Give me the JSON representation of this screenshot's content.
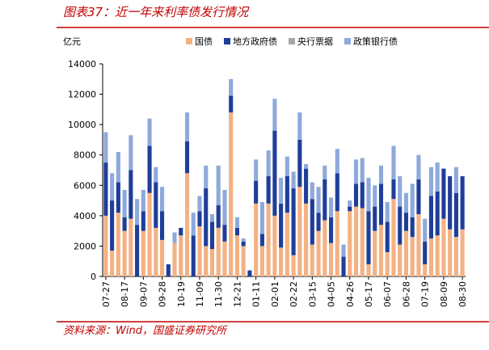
{
  "chart_data": {
    "type": "stacked_bar",
    "title": "图表37：近一年来利率债发行情况",
    "y_label": "亿元",
    "source": "资料来源：Wind，国盛证券研究所",
    "categories": [
      "07-27",
      null,
      null,
      "08-17",
      null,
      null,
      "09-07",
      null,
      null,
      "09-28",
      null,
      null,
      "10-19",
      null,
      null,
      "11-09",
      null,
      null,
      "11-30",
      null,
      null,
      "12-21",
      null,
      null,
      "01-11",
      null,
      null,
      "02-01",
      null,
      null,
      "02-22",
      null,
      null,
      "03-15",
      null,
      null,
      "04-05",
      null,
      null,
      "04-26",
      null,
      null,
      "05-17",
      null,
      null,
      "06-07",
      null,
      null,
      "06-28",
      null,
      null,
      "07-19",
      null,
      null,
      "08-09",
      null,
      null,
      "08-30"
    ],
    "series": [
      {
        "name": "国债",
        "color": "#f4b183",
        "values": [
          4000,
          1700,
          4200,
          3000,
          3800,
          0,
          3000,
          5500,
          3200,
          2400,
          0,
          2200,
          2700,
          6800,
          0,
          3300,
          2000,
          1800,
          3200,
          2300,
          10800,
          2700,
          2000,
          0,
          4800,
          2000,
          4800,
          4000,
          1900,
          4200,
          1400,
          5900,
          4800,
          2100,
          3000,
          3700,
          2200,
          4300,
          0,
          4300,
          4600,
          4500,
          800,
          3000,
          3400,
          1600,
          5100,
          2100,
          3000,
          2600,
          4100,
          800,
          2500,
          2700,
          3800,
          3100,
          2600,
          3100
        ]
      },
      {
        "name": "地方政府债",
        "color": "#1f3e99",
        "values": [
          3500,
          3300,
          2000,
          900,
          3200,
          3400,
          1300,
          3100,
          3000,
          1900,
          800,
          0,
          500,
          2100,
          2700,
          1000,
          3800,
          1800,
          1500,
          1100,
          1100,
          500,
          300,
          400,
          1500,
          800,
          1800,
          5600,
          2900,
          2400,
          4400,
          3100,
          2300,
          3000,
          1200,
          2700,
          1700,
          2500,
          1300,
          300,
          1500,
          1700,
          3500,
          1600,
          2700,
          2000,
          1300,
          2500,
          1200,
          1300,
          2300,
          1500,
          2800,
          2900,
          3300,
          3500,
          2900,
          3500
        ]
      },
      {
        "name": "央行票据",
        "color": "#a6a6a6",
        "values": [
          0,
          0,
          0,
          0,
          0,
          0,
          0,
          0,
          0,
          0,
          0,
          0,
          0,
          0,
          0,
          0,
          0,
          0,
          0,
          0,
          0,
          0,
          0,
          0,
          0,
          0,
          0,
          0,
          0,
          0,
          0,
          0,
          0,
          0,
          0,
          0,
          0,
          0,
          0,
          0,
          0,
          0,
          0,
          0,
          0,
          0,
          0,
          0,
          0,
          0,
          0,
          0,
          0,
          0,
          0,
          0,
          0,
          0
        ]
      },
      {
        "name": "政策银行债",
        "color": "#8ea9db",
        "values": [
          2000,
          1800,
          2000,
          1800,
          2300,
          1700,
          1400,
          1800,
          1000,
          1600,
          0,
          700,
          0,
          1900,
          1500,
          1000,
          1500,
          500,
          2600,
          2300,
          1100,
          700,
          200,
          0,
          1400,
          2100,
          1700,
          2100,
          1700,
          1300,
          1100,
          1800,
          300,
          1100,
          1700,
          900,
          1300,
          1600,
          800,
          400,
          1600,
          1600,
          2200,
          1400,
          1200,
          1300,
          2200,
          2000,
          1300,
          2200,
          1600,
          1500,
          1900,
          1900,
          0,
          0,
          1700,
          0
        ]
      }
    ],
    "ylim": [
      0,
      14000
    ],
    "yticks": [
      0,
      2000,
      4000,
      6000,
      8000,
      10000,
      12000,
      14000
    ]
  }
}
